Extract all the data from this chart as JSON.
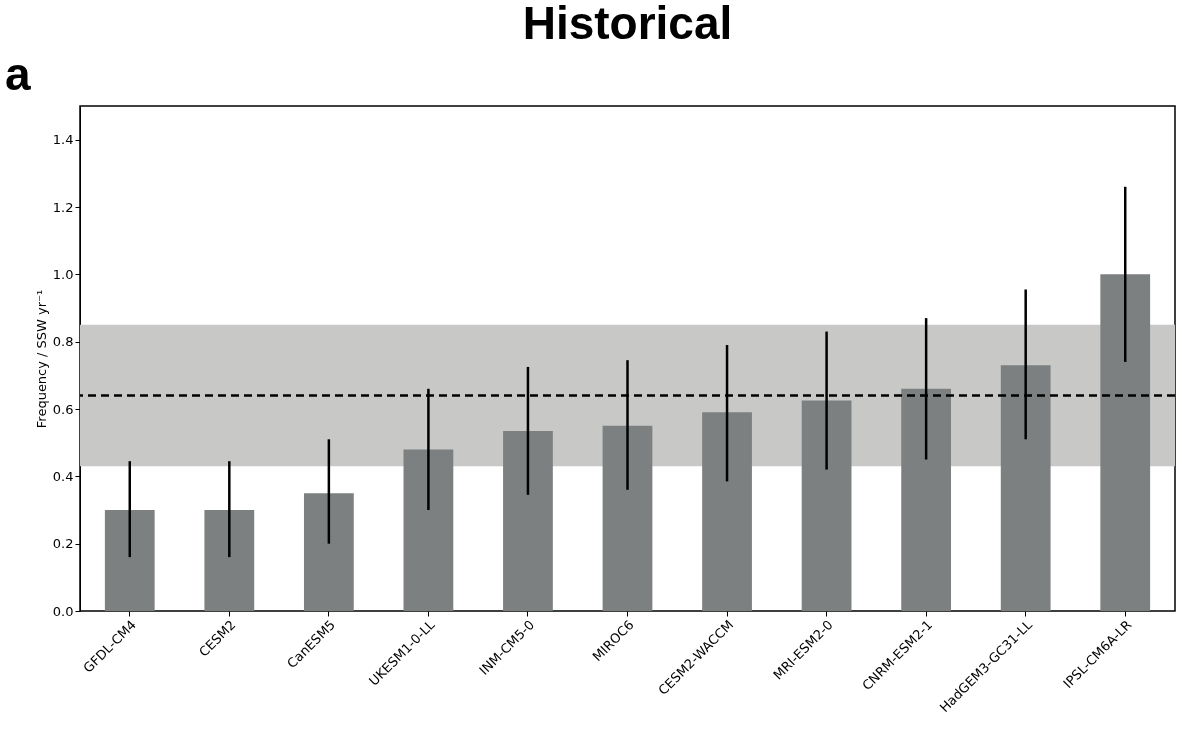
{
  "chart_data": {
    "type": "bar",
    "title": "Historical",
    "ylabel": "Frequency / SSW yr⁻¹",
    "annotations": [
      "a"
    ],
    "categories": [
      "GFDL-CM4",
      "CESM2",
      "CanESM5",
      "UKESM1-0-LL",
      "INM-CM5-0",
      "MIROC6",
      "CESM2-WACCM",
      "MRI-ESM2-0",
      "CNRM-ESM2-1",
      "HadGEM3-GC31-LL",
      "IPSL-CM6A-LR"
    ],
    "series": [
      {
        "color": "#7d8081",
        "values": [
          0.3,
          0.3,
          0.35,
          0.48,
          0.535,
          0.55,
          0.59,
          0.625,
          0.66,
          0.73,
          1.0
        ],
        "errors": [
          [
            0.16,
            0.445
          ],
          [
            0.16,
            0.445
          ],
          [
            0.2,
            0.51
          ],
          [
            0.3,
            0.66
          ],
          [
            0.345,
            0.725
          ],
          [
            0.36,
            0.745
          ],
          [
            0.385,
            0.79
          ],
          [
            0.42,
            0.83
          ],
          [
            0.45,
            0.87
          ],
          [
            0.51,
            0.955
          ],
          [
            0.74,
            1.26
          ]
        ]
      }
    ],
    "ylim": [
      0,
      1.5
    ],
    "yticks": [
      {
        "value": 0,
        "label": "0.0"
      },
      0.2,
      0.4,
      0.6,
      0.8,
      {
        "value": 1,
        "label": "1.0"
      },
      1.2,
      1.4
    ],
    "ref_lines": [
      {
        "axis": "y",
        "value": 0.64,
        "label": null,
        "color": "#000000",
        "line_style": "dashed"
      }
    ],
    "bands": [
      {
        "axis": "y",
        "from": 0.43,
        "to": 0.85,
        "label": null,
        "color": "#c8c8c7"
      }
    ],
    "grid": false
  }
}
